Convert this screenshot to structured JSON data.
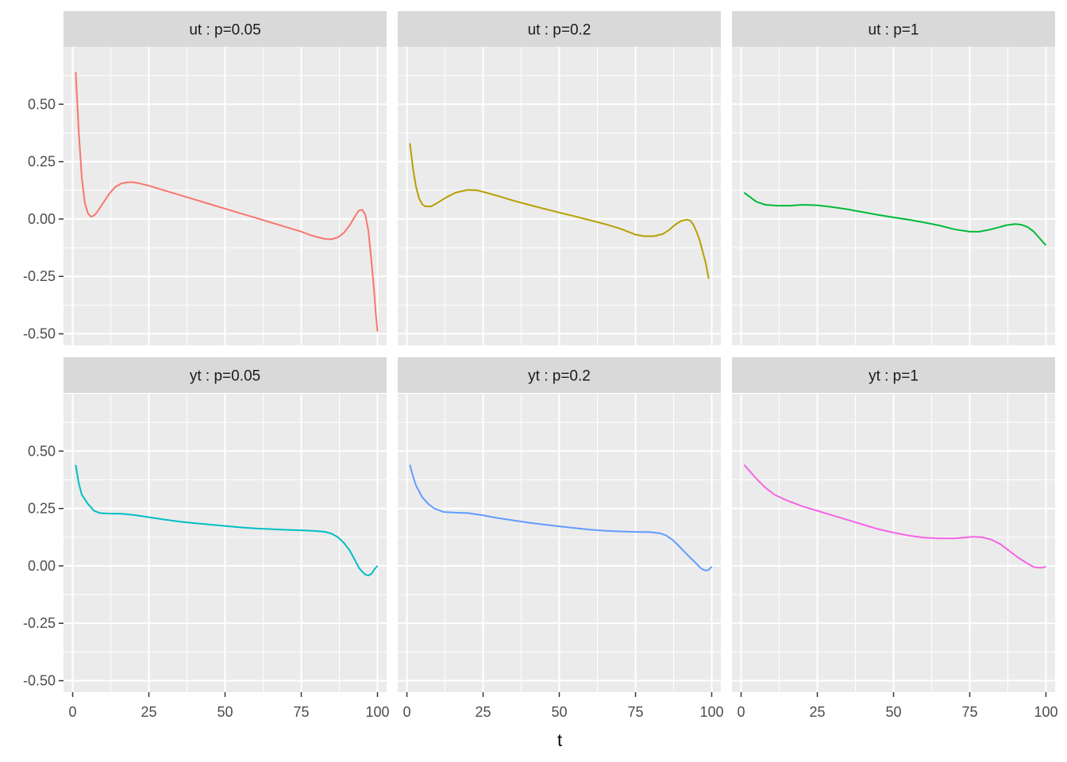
{
  "chart_data": {
    "type": "line",
    "xlabel": "t",
    "ylabel": "",
    "title": "",
    "xlim": [
      -3,
      103
    ],
    "ylim": [
      -0.55,
      0.75
    ],
    "x_ticks": [
      0,
      25,
      50,
      75,
      100
    ],
    "x_tick_labels": [
      "0",
      "25",
      "50",
      "75",
      "100"
    ],
    "y_ticks": [
      -0.5,
      -0.25,
      0,
      0.25,
      0.5
    ],
    "y_tick_labels": [
      "-0.50",
      "-0.25",
      "0.00",
      "0.25",
      "0.50"
    ],
    "grid": true,
    "legend": "none",
    "panels": [
      {
        "label": "ut : p=0.05",
        "color": "#F8766D",
        "points": [
          [
            1,
            0.64
          ],
          [
            2,
            0.38
          ],
          [
            3,
            0.18
          ],
          [
            4,
            0.07
          ],
          [
            5,
            0.025
          ],
          [
            6,
            0.01
          ],
          [
            7,
            0.015
          ],
          [
            8,
            0.03
          ],
          [
            10,
            0.07
          ],
          [
            12,
            0.11
          ],
          [
            14,
            0.14
          ],
          [
            16,
            0.155
          ],
          [
            18,
            0.16
          ],
          [
            20,
            0.16
          ],
          [
            22,
            0.155
          ],
          [
            25,
            0.145
          ],
          [
            30,
            0.125
          ],
          [
            35,
            0.105
          ],
          [
            40,
            0.085
          ],
          [
            45,
            0.065
          ],
          [
            50,
            0.045
          ],
          [
            55,
            0.025
          ],
          [
            60,
            0.005
          ],
          [
            65,
            -0.015
          ],
          [
            70,
            -0.035
          ],
          [
            75,
            -0.055
          ],
          [
            78,
            -0.07
          ],
          [
            80,
            -0.078
          ],
          [
            83,
            -0.087
          ],
          [
            85,
            -0.088
          ],
          [
            87,
            -0.08
          ],
          [
            89,
            -0.06
          ],
          [
            91,
            -0.025
          ],
          [
            93,
            0.02
          ],
          [
            94,
            0.038
          ],
          [
            95,
            0.04
          ],
          [
            96,
            0.02
          ],
          [
            97,
            -0.05
          ],
          [
            98,
            -0.18
          ],
          [
            99,
            -0.33
          ],
          [
            99.5,
            -0.42
          ],
          [
            100,
            -0.49
          ]
        ]
      },
      {
        "label": "ut : p=0.2",
        "color": "#B79F00",
        "points": [
          [
            1,
            0.33
          ],
          [
            2,
            0.22
          ],
          [
            3,
            0.14
          ],
          [
            4,
            0.09
          ],
          [
            5,
            0.065
          ],
          [
            6,
            0.055
          ],
          [
            8,
            0.055
          ],
          [
            10,
            0.07
          ],
          [
            13,
            0.095
          ],
          [
            16,
            0.115
          ],
          [
            20,
            0.127
          ],
          [
            23,
            0.125
          ],
          [
            26,
            0.115
          ],
          [
            30,
            0.1
          ],
          [
            35,
            0.08
          ],
          [
            40,
            0.062
          ],
          [
            45,
            0.045
          ],
          [
            50,
            0.028
          ],
          [
            55,
            0.012
          ],
          [
            60,
            -0.005
          ],
          [
            65,
            -0.022
          ],
          [
            70,
            -0.042
          ],
          [
            75,
            -0.068
          ],
          [
            78,
            -0.075
          ],
          [
            81,
            -0.075
          ],
          [
            84,
            -0.065
          ],
          [
            86,
            -0.048
          ],
          [
            88,
            -0.025
          ],
          [
            90,
            -0.008
          ],
          [
            92,
            -0.003
          ],
          [
            93,
            -0.007
          ],
          [
            94,
            -0.025
          ],
          [
            95,
            -0.055
          ],
          [
            96,
            -0.09
          ],
          [
            97,
            -0.14
          ],
          [
            98,
            -0.19
          ],
          [
            99,
            -0.26
          ]
        ]
      },
      {
        "label": "ut : p=1",
        "color": "#00BA38",
        "points": [
          [
            1,
            0.115
          ],
          [
            3,
            0.095
          ],
          [
            5,
            0.075
          ],
          [
            8,
            0.062
          ],
          [
            12,
            0.058
          ],
          [
            16,
            0.058
          ],
          [
            20,
            0.062
          ],
          [
            25,
            0.06
          ],
          [
            30,
            0.052
          ],
          [
            35,
            0.042
          ],
          [
            40,
            0.03
          ],
          [
            45,
            0.018
          ],
          [
            50,
            0.007
          ],
          [
            55,
            -0.003
          ],
          [
            60,
            -0.015
          ],
          [
            65,
            -0.028
          ],
          [
            70,
            -0.045
          ],
          [
            75,
            -0.055
          ],
          [
            78,
            -0.055
          ],
          [
            81,
            -0.048
          ],
          [
            84,
            -0.038
          ],
          [
            87,
            -0.027
          ],
          [
            90,
            -0.022
          ],
          [
            92,
            -0.025
          ],
          [
            94,
            -0.035
          ],
          [
            96,
            -0.055
          ],
          [
            98,
            -0.085
          ],
          [
            100,
            -0.115
          ]
        ]
      },
      {
        "label": "yt : p=0.05",
        "color": "#00BFC4",
        "points": [
          [
            1,
            0.44
          ],
          [
            2,
            0.36
          ],
          [
            3,
            0.31
          ],
          [
            5,
            0.27
          ],
          [
            7,
            0.24
          ],
          [
            9,
            0.23
          ],
          [
            12,
            0.228
          ],
          [
            16,
            0.227
          ],
          [
            20,
            0.222
          ],
          [
            25,
            0.212
          ],
          [
            30,
            0.202
          ],
          [
            35,
            0.193
          ],
          [
            40,
            0.186
          ],
          [
            45,
            0.18
          ],
          [
            50,
            0.174
          ],
          [
            55,
            0.168
          ],
          [
            60,
            0.163
          ],
          [
            65,
            0.16
          ],
          [
            70,
            0.157
          ],
          [
            75,
            0.155
          ],
          [
            80,
            0.152
          ],
          [
            83,
            0.148
          ],
          [
            85,
            0.14
          ],
          [
            87,
            0.125
          ],
          [
            89,
            0.1
          ],
          [
            91,
            0.065
          ],
          [
            92,
            0.04
          ],
          [
            93,
            0.015
          ],
          [
            94,
            -0.01
          ],
          [
            95,
            -0.025
          ],
          [
            96,
            -0.038
          ],
          [
            97,
            -0.042
          ],
          [
            98,
            -0.035
          ],
          [
            99,
            -0.015
          ],
          [
            100,
            0
          ]
        ]
      },
      {
        "label": "yt : p=0.2",
        "color": "#619CFF",
        "points": [
          [
            1,
            0.44
          ],
          [
            2,
            0.39
          ],
          [
            3,
            0.35
          ],
          [
            5,
            0.3
          ],
          [
            7,
            0.27
          ],
          [
            9,
            0.25
          ],
          [
            12,
            0.235
          ],
          [
            16,
            0.232
          ],
          [
            20,
            0.23
          ],
          [
            25,
            0.22
          ],
          [
            30,
            0.208
          ],
          [
            35,
            0.198
          ],
          [
            40,
            0.188
          ],
          [
            45,
            0.18
          ],
          [
            50,
            0.172
          ],
          [
            55,
            0.165
          ],
          [
            60,
            0.158
          ],
          [
            65,
            0.153
          ],
          [
            70,
            0.15
          ],
          [
            75,
            0.148
          ],
          [
            80,
            0.147
          ],
          [
            83,
            0.142
          ],
          [
            85,
            0.133
          ],
          [
            87,
            0.115
          ],
          [
            89,
            0.09
          ],
          [
            91,
            0.062
          ],
          [
            93,
            0.035
          ],
          [
            95,
            0.01
          ],
          [
            96,
            -0.005
          ],
          [
            97,
            -0.015
          ],
          [
            98,
            -0.02
          ],
          [
            99,
            -0.018
          ],
          [
            100,
            -0.003
          ]
        ]
      },
      {
        "label": "yt : p=1",
        "color": "#F564E3",
        "points": [
          [
            1,
            0.44
          ],
          [
            3,
            0.41
          ],
          [
            5,
            0.38
          ],
          [
            8,
            0.34
          ],
          [
            11,
            0.31
          ],
          [
            15,
            0.285
          ],
          [
            20,
            0.26
          ],
          [
            25,
            0.24
          ],
          [
            30,
            0.22
          ],
          [
            35,
            0.2
          ],
          [
            40,
            0.18
          ],
          [
            45,
            0.16
          ],
          [
            50,
            0.145
          ],
          [
            55,
            0.132
          ],
          [
            60,
            0.123
          ],
          [
            65,
            0.12
          ],
          [
            70,
            0.12
          ],
          [
            73,
            0.123
          ],
          [
            76,
            0.127
          ],
          [
            79,
            0.125
          ],
          [
            82,
            0.115
          ],
          [
            85,
            0.095
          ],
          [
            88,
            0.065
          ],
          [
            91,
            0.035
          ],
          [
            94,
            0.01
          ],
          [
            96,
            -0.005
          ],
          [
            98,
            -0.008
          ],
          [
            99,
            -0.007
          ],
          [
            100,
            -0.003
          ]
        ]
      }
    ]
  }
}
